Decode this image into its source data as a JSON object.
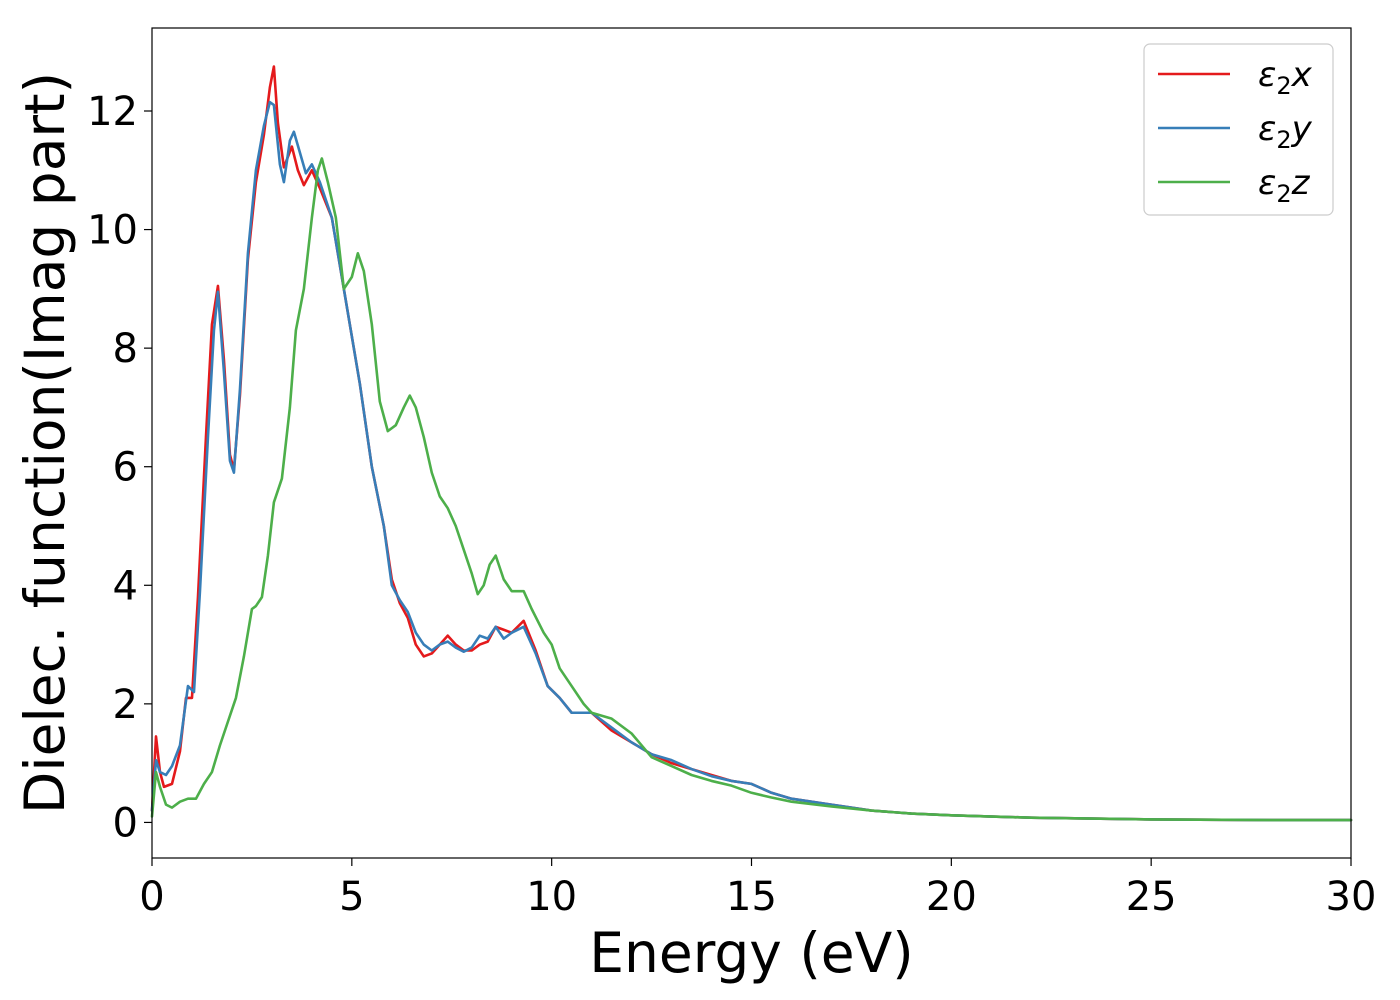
{
  "chart_data": {
    "type": "line",
    "xlabel": "Energy (eV)",
    "ylabel": "Dielec. function(Imag part)",
    "xlim": [
      0,
      30
    ],
    "ylim": [
      -0.6,
      13.4
    ],
    "xticks": [
      0,
      5,
      10,
      15,
      20,
      25,
      30
    ],
    "yticks": [
      0,
      2,
      4,
      6,
      8,
      10,
      12
    ],
    "grid": false,
    "legend_position": "top-right",
    "series": [
      {
        "name": "ε2x",
        "legend": {
          "base": "ε",
          "sub": "2",
          "suffix": "x"
        },
        "color": "#e41a1c",
        "points": [
          [
            0,
            0.2
          ],
          [
            0.1,
            1.45
          ],
          [
            0.2,
            0.85
          ],
          [
            0.3,
            0.6
          ],
          [
            0.5,
            0.65
          ],
          [
            0.7,
            1.2
          ],
          [
            0.85,
            2.1
          ],
          [
            1.0,
            2.1
          ],
          [
            1.15,
            3.8
          ],
          [
            1.35,
            6.5
          ],
          [
            1.5,
            8.4
          ],
          [
            1.65,
            9.05
          ],
          [
            1.8,
            7.8
          ],
          [
            1.95,
            6.2
          ],
          [
            2.05,
            5.95
          ],
          [
            2.2,
            7.2
          ],
          [
            2.4,
            9.5
          ],
          [
            2.6,
            10.8
          ],
          [
            2.8,
            11.6
          ],
          [
            2.95,
            12.4
          ],
          [
            3.05,
            12.75
          ],
          [
            3.15,
            11.8
          ],
          [
            3.3,
            11.05
          ],
          [
            3.5,
            11.4
          ],
          [
            3.65,
            11.0
          ],
          [
            3.8,
            10.75
          ],
          [
            4.0,
            11.0
          ],
          [
            4.2,
            10.7
          ],
          [
            4.5,
            10.2
          ],
          [
            4.8,
            9.0
          ],
          [
            5.0,
            8.2
          ],
          [
            5.2,
            7.4
          ],
          [
            5.5,
            6.0
          ],
          [
            5.8,
            5.0
          ],
          [
            6.0,
            4.1
          ],
          [
            6.2,
            3.7
          ],
          [
            6.4,
            3.45
          ],
          [
            6.6,
            3.0
          ],
          [
            6.8,
            2.8
          ],
          [
            7.0,
            2.85
          ],
          [
            7.2,
            3.0
          ],
          [
            7.4,
            3.15
          ],
          [
            7.6,
            3.0
          ],
          [
            7.8,
            2.9
          ],
          [
            8.0,
            2.9
          ],
          [
            8.2,
            3.0
          ],
          [
            8.4,
            3.05
          ],
          [
            8.6,
            3.3
          ],
          [
            8.8,
            3.25
          ],
          [
            9.0,
            3.2
          ],
          [
            9.3,
            3.4
          ],
          [
            9.6,
            2.9
          ],
          [
            9.9,
            2.3
          ],
          [
            10.2,
            2.1
          ],
          [
            10.5,
            1.85
          ],
          [
            11.0,
            1.85
          ],
          [
            11.5,
            1.55
          ],
          [
            12.0,
            1.35
          ],
          [
            12.5,
            1.15
          ],
          [
            13.0,
            1.0
          ],
          [
            13.5,
            0.9
          ],
          [
            14.0,
            0.8
          ],
          [
            14.5,
            0.7
          ],
          [
            15.0,
            0.65
          ],
          [
            15.5,
            0.5
          ],
          [
            16.0,
            0.4
          ],
          [
            17.0,
            0.3
          ],
          [
            18.0,
            0.2
          ],
          [
            19.0,
            0.15
          ],
          [
            20.0,
            0.12
          ],
          [
            22.0,
            0.08
          ],
          [
            25.0,
            0.05
          ],
          [
            28.0,
            0.04
          ],
          [
            30.0,
            0.04
          ]
        ]
      },
      {
        "name": "ε2y",
        "legend": {
          "base": "ε",
          "sub": "2",
          "suffix": "y"
        },
        "color": "#377eb8",
        "points": [
          [
            0,
            0.2
          ],
          [
            0.1,
            1.05
          ],
          [
            0.2,
            0.85
          ],
          [
            0.35,
            0.8
          ],
          [
            0.5,
            0.95
          ],
          [
            0.7,
            1.3
          ],
          [
            0.9,
            2.3
          ],
          [
            1.05,
            2.2
          ],
          [
            1.2,
            3.9
          ],
          [
            1.4,
            6.5
          ],
          [
            1.55,
            8.3
          ],
          [
            1.65,
            8.95
          ],
          [
            1.8,
            7.6
          ],
          [
            1.95,
            6.1
          ],
          [
            2.05,
            5.9
          ],
          [
            2.2,
            7.3
          ],
          [
            2.4,
            9.6
          ],
          [
            2.6,
            11.0
          ],
          [
            2.8,
            11.75
          ],
          [
            2.95,
            12.15
          ],
          [
            3.05,
            12.1
          ],
          [
            3.2,
            11.1
          ],
          [
            3.3,
            10.8
          ],
          [
            3.45,
            11.5
          ],
          [
            3.55,
            11.65
          ],
          [
            3.7,
            11.3
          ],
          [
            3.85,
            10.95
          ],
          [
            4.0,
            11.1
          ],
          [
            4.2,
            10.8
          ],
          [
            4.5,
            10.2
          ],
          [
            4.8,
            9.0
          ],
          [
            5.0,
            8.2
          ],
          [
            5.2,
            7.4
          ],
          [
            5.5,
            6.0
          ],
          [
            5.8,
            5.0
          ],
          [
            6.0,
            4.0
          ],
          [
            6.2,
            3.75
          ],
          [
            6.4,
            3.55
          ],
          [
            6.6,
            3.2
          ],
          [
            6.8,
            3.0
          ],
          [
            7.0,
            2.9
          ],
          [
            7.2,
            3.0
          ],
          [
            7.4,
            3.05
          ],
          [
            7.6,
            2.95
          ],
          [
            7.8,
            2.88
          ],
          [
            8.0,
            2.95
          ],
          [
            8.2,
            3.15
          ],
          [
            8.4,
            3.1
          ],
          [
            8.6,
            3.3
          ],
          [
            8.8,
            3.1
          ],
          [
            9.0,
            3.2
          ],
          [
            9.3,
            3.3
          ],
          [
            9.6,
            2.85
          ],
          [
            9.9,
            2.3
          ],
          [
            10.2,
            2.1
          ],
          [
            10.5,
            1.85
          ],
          [
            11.0,
            1.85
          ],
          [
            11.5,
            1.6
          ],
          [
            12.0,
            1.35
          ],
          [
            12.5,
            1.15
          ],
          [
            13.0,
            1.05
          ],
          [
            13.5,
            0.9
          ],
          [
            14.0,
            0.78
          ],
          [
            14.5,
            0.7
          ],
          [
            15.0,
            0.65
          ],
          [
            15.5,
            0.5
          ],
          [
            16.0,
            0.4
          ],
          [
            17.0,
            0.3
          ],
          [
            18.0,
            0.2
          ],
          [
            19.0,
            0.15
          ],
          [
            20.0,
            0.12
          ],
          [
            22.0,
            0.08
          ],
          [
            25.0,
            0.05
          ],
          [
            28.0,
            0.04
          ],
          [
            30.0,
            0.04
          ]
        ]
      },
      {
        "name": "ε2z",
        "legend": {
          "base": "ε",
          "sub": "2",
          "suffix": "z"
        },
        "color": "#4daf4a",
        "points": [
          [
            0,
            0.1
          ],
          [
            0.1,
            0.85
          ],
          [
            0.2,
            0.6
          ],
          [
            0.35,
            0.3
          ],
          [
            0.5,
            0.25
          ],
          [
            0.7,
            0.35
          ],
          [
            0.9,
            0.4
          ],
          [
            1.1,
            0.4
          ],
          [
            1.3,
            0.65
          ],
          [
            1.5,
            0.85
          ],
          [
            1.7,
            1.3
          ],
          [
            1.9,
            1.7
          ],
          [
            2.1,
            2.1
          ],
          [
            2.3,
            2.8
          ],
          [
            2.5,
            3.6
          ],
          [
            2.6,
            3.65
          ],
          [
            2.75,
            3.8
          ],
          [
            2.9,
            4.5
          ],
          [
            3.05,
            5.4
          ],
          [
            3.25,
            5.8
          ],
          [
            3.45,
            7.0
          ],
          [
            3.6,
            8.3
          ],
          [
            3.8,
            9.0
          ],
          [
            4.0,
            10.2
          ],
          [
            4.15,
            11.0
          ],
          [
            4.25,
            11.2
          ],
          [
            4.4,
            10.8
          ],
          [
            4.6,
            10.2
          ],
          [
            4.8,
            9.0
          ],
          [
            5.0,
            9.2
          ],
          [
            5.15,
            9.6
          ],
          [
            5.3,
            9.3
          ],
          [
            5.5,
            8.4
          ],
          [
            5.7,
            7.1
          ],
          [
            5.9,
            6.6
          ],
          [
            6.1,
            6.7
          ],
          [
            6.3,
            7.0
          ],
          [
            6.45,
            7.2
          ],
          [
            6.6,
            7.0
          ],
          [
            6.8,
            6.5
          ],
          [
            7.0,
            5.9
          ],
          [
            7.2,
            5.5
          ],
          [
            7.4,
            5.3
          ],
          [
            7.6,
            5.0
          ],
          [
            7.8,
            4.6
          ],
          [
            8.0,
            4.2
          ],
          [
            8.15,
            3.85
          ],
          [
            8.3,
            4.0
          ],
          [
            8.45,
            4.35
          ],
          [
            8.6,
            4.5
          ],
          [
            8.8,
            4.1
          ],
          [
            9.0,
            3.9
          ],
          [
            9.3,
            3.9
          ],
          [
            9.5,
            3.6
          ],
          [
            9.8,
            3.2
          ],
          [
            10.0,
            3.0
          ],
          [
            10.2,
            2.6
          ],
          [
            10.5,
            2.3
          ],
          [
            10.8,
            2.0
          ],
          [
            11.0,
            1.85
          ],
          [
            11.5,
            1.75
          ],
          [
            12.0,
            1.5
          ],
          [
            12.5,
            1.1
          ],
          [
            13.0,
            0.95
          ],
          [
            13.5,
            0.8
          ],
          [
            14.0,
            0.7
          ],
          [
            14.5,
            0.62
          ],
          [
            15.0,
            0.5
          ],
          [
            15.5,
            0.42
          ],
          [
            16.0,
            0.35
          ],
          [
            17.0,
            0.27
          ],
          [
            18.0,
            0.2
          ],
          [
            19.0,
            0.15
          ],
          [
            20.0,
            0.12
          ],
          [
            22.0,
            0.08
          ],
          [
            25.0,
            0.05
          ],
          [
            28.0,
            0.04
          ],
          [
            30.0,
            0.04
          ]
        ]
      }
    ]
  }
}
